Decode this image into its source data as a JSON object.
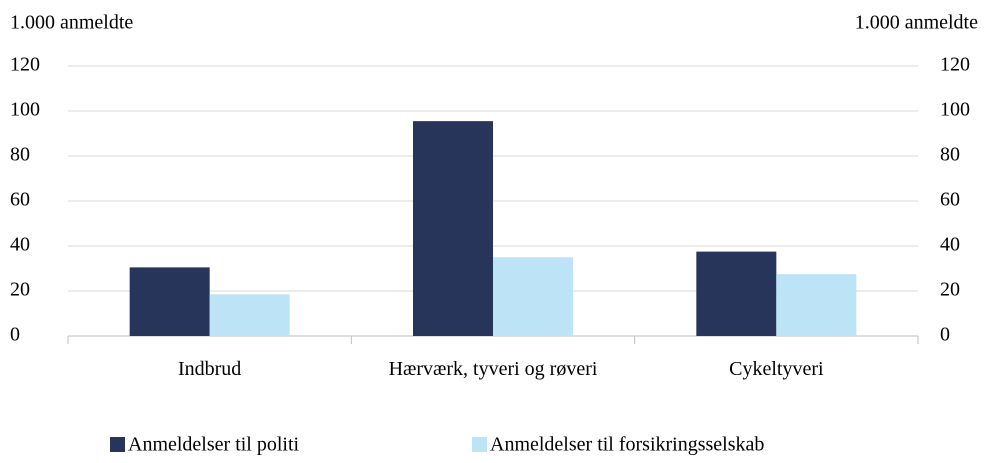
{
  "chart_data": {
    "type": "bar",
    "y_label": "1.000 anmeldte",
    "y2_label": "1.000 anmeldte",
    "categories": [
      "Indbrud",
      "Hærværk, tyveri og røveri",
      "Cykeltyveri"
    ],
    "series": [
      {
        "name": "Anmeldelser til politi",
        "color": "#27355a",
        "values": [
          30.5,
          95.5,
          37.5
        ]
      },
      {
        "name": "Anmeldelser til forsikringsselskab",
        "color": "#bde3f6",
        "values": [
          18.5,
          35,
          27.5
        ]
      }
    ],
    "ylim": [
      0,
      120
    ],
    "yticks": [
      0,
      20,
      40,
      60,
      80,
      100,
      120
    ],
    "y2lim": [
      0,
      120
    ],
    "y2ticks": [
      0,
      20,
      40,
      60,
      80,
      100,
      120
    ],
    "grid": true,
    "legend": "bottom"
  }
}
